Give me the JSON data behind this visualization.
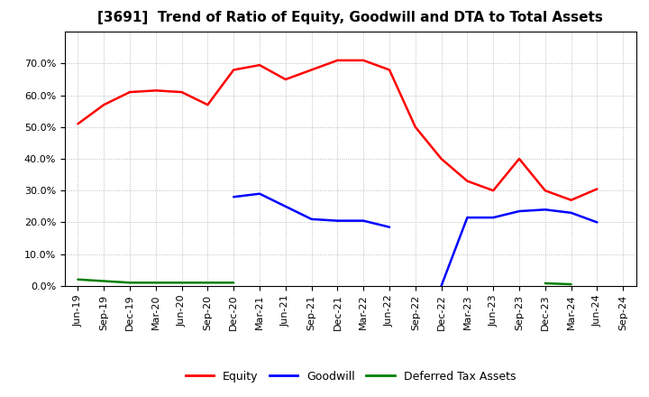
{
  "title": "[3691]  Trend of Ratio of Equity, Goodwill and DTA to Total Assets",
  "x_labels": [
    "Jun-19",
    "Sep-19",
    "Dec-19",
    "Mar-20",
    "Jun-20",
    "Sep-20",
    "Dec-20",
    "Mar-21",
    "Jun-21",
    "Sep-21",
    "Dec-21",
    "Mar-22",
    "Jun-22",
    "Sep-22",
    "Dec-22",
    "Mar-23",
    "Jun-23",
    "Sep-23",
    "Dec-23",
    "Mar-24",
    "Jun-24",
    "Sep-24"
  ],
  "equity": [
    51.0,
    57.0,
    61.0,
    61.5,
    61.0,
    57.0,
    68.0,
    69.5,
    65.0,
    68.0,
    71.0,
    71.0,
    68.0,
    50.0,
    40.0,
    33.0,
    30.0,
    40.0,
    30.0,
    27.0,
    30.5,
    null
  ],
  "goodwill_seg1": [
    null,
    null,
    null,
    null,
    null,
    null,
    28.0,
    29.0,
    25.0,
    21.0,
    20.5,
    20.5,
    18.5,
    null,
    null,
    null,
    null,
    null,
    null,
    null,
    null,
    null
  ],
  "goodwill_seg2": [
    null,
    null,
    null,
    null,
    null,
    null,
    null,
    null,
    null,
    null,
    null,
    null,
    null,
    null,
    0.0,
    21.5,
    21.5,
    23.5,
    24.0,
    23.0,
    20.0,
    null
  ],
  "dta_seg1": [
    2.0,
    1.5,
    1.0,
    1.0,
    1.0,
    1.0,
    1.0,
    null,
    null,
    null,
    null,
    null,
    null,
    null,
    null,
    null,
    null,
    null,
    null,
    null,
    null,
    null
  ],
  "dta_seg2": [
    null,
    null,
    null,
    null,
    null,
    null,
    null,
    null,
    null,
    null,
    null,
    null,
    null,
    null,
    null,
    null,
    null,
    null,
    0.8,
    0.5,
    null,
    null
  ],
  "ylim_min": 0,
  "ylim_max": 80,
  "yticks": [
    0,
    10,
    20,
    30,
    40,
    50,
    60,
    70
  ],
  "equity_color": "#FF0000",
  "goodwill_color": "#0000FF",
  "dta_color": "#008000",
  "background_color": "#FFFFFF",
  "grid_color": "#999999",
  "title_fontsize": 11,
  "tick_fontsize": 8,
  "legend_fontsize": 9,
  "linewidth": 1.8
}
